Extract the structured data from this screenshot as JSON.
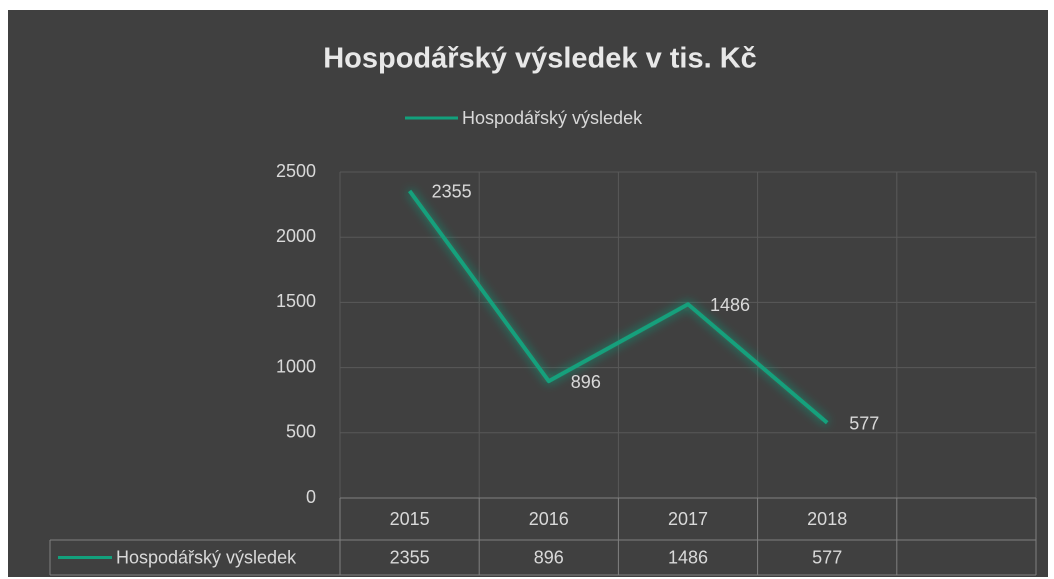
{
  "chart_data": {
    "type": "line",
    "title": "Hospodářský výsledek v tis. Kč",
    "categories": [
      "2015",
      "2016",
      "2017",
      "2018",
      null
    ],
    "series": [
      {
        "name": "Hospodářský výsledek",
        "color": "#12a07c",
        "values": [
          2355,
          896,
          1486,
          577,
          null
        ]
      }
    ],
    "ylim": [
      0,
      2500
    ],
    "yticks": [
      0,
      500,
      1000,
      1500,
      2000,
      2500
    ],
    "grid": true,
    "legend": "top",
    "data_table": true
  }
}
